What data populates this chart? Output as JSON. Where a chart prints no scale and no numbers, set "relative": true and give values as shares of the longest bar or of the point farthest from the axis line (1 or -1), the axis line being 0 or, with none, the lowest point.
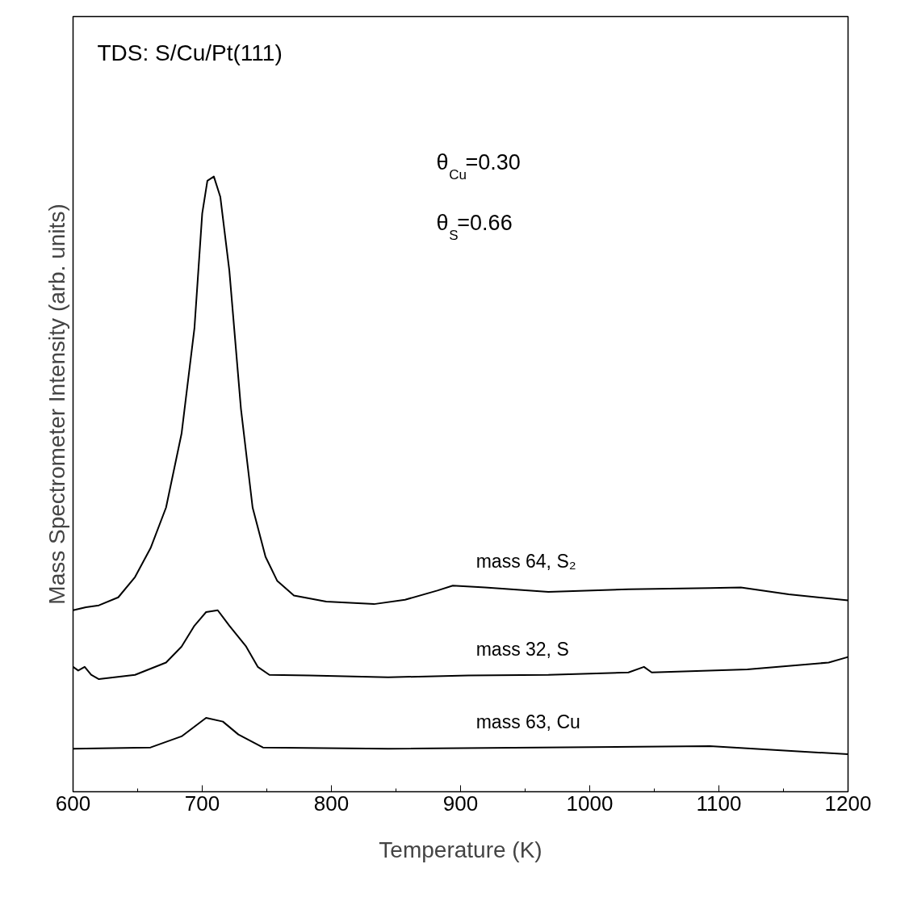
{
  "chart_data": {
    "type": "line",
    "xlabel": "Temperature (K)",
    "ylabel": "Mass Spectrometer Intensity (arb. units)",
    "relative": true,
    "xlim": [
      600,
      1200
    ],
    "xticks": [
      600,
      700,
      800,
      900,
      1000,
      1100,
      1200
    ],
    "grid": false,
    "annotations": [
      "TDS: S/Cu/Pt(111)",
      "θ$_{Cu}$=0.30",
      "θ$_{S}$=0.66"
    ],
    "series": [
      {
        "name": "mass 64, S₂",
        "color": "#000000",
        "x": [
          600,
          610,
          620,
          635,
          648,
          660,
          672,
          684,
          694,
          700,
          704,
          709,
          714,
          721,
          730,
          739,
          749,
          758,
          771,
          796,
          833,
          857,
          882,
          894,
          919,
          968,
          1030,
          1093,
          1117,
          1154,
          1200
        ],
        "values": [
          0.295,
          0.3,
          0.303,
          0.316,
          0.349,
          0.396,
          0.462,
          0.582,
          0.754,
          0.94,
          0.993,
          1.0,
          0.967,
          0.847,
          0.622,
          0.462,
          0.382,
          0.343,
          0.319,
          0.309,
          0.305,
          0.312,
          0.327,
          0.335,
          0.332,
          0.325,
          0.329,
          0.331,
          0.332,
          0.321,
          0.311
        ]
      },
      {
        "name": "mass 32, S",
        "color": "#000000",
        "x": [
          600,
          604,
          609,
          614,
          620,
          648,
          672,
          684,
          694,
          703,
          712,
          721,
          734,
          743,
          752,
          783,
          844,
          906,
          968,
          1030,
          1042,
          1048,
          1122,
          1185,
          1200
        ],
        "values": [
          0.203,
          0.197,
          0.203,
          0.19,
          0.183,
          0.19,
          0.21,
          0.236,
          0.27,
          0.292,
          0.295,
          0.27,
          0.236,
          0.203,
          0.19,
          0.189,
          0.186,
          0.189,
          0.19,
          0.194,
          0.203,
          0.194,
          0.199,
          0.21,
          0.219
        ]
      },
      {
        "name": "mass 63, Cu",
        "color": "#000000",
        "x": [
          600,
          660,
          684,
          703,
          716,
          728,
          747,
          844,
          1093,
          1200
        ],
        "values": [
          0.07,
          0.072,
          0.09,
          0.12,
          0.114,
          0.093,
          0.072,
          0.07,
          0.074,
          0.061
        ]
      }
    ]
  }
}
